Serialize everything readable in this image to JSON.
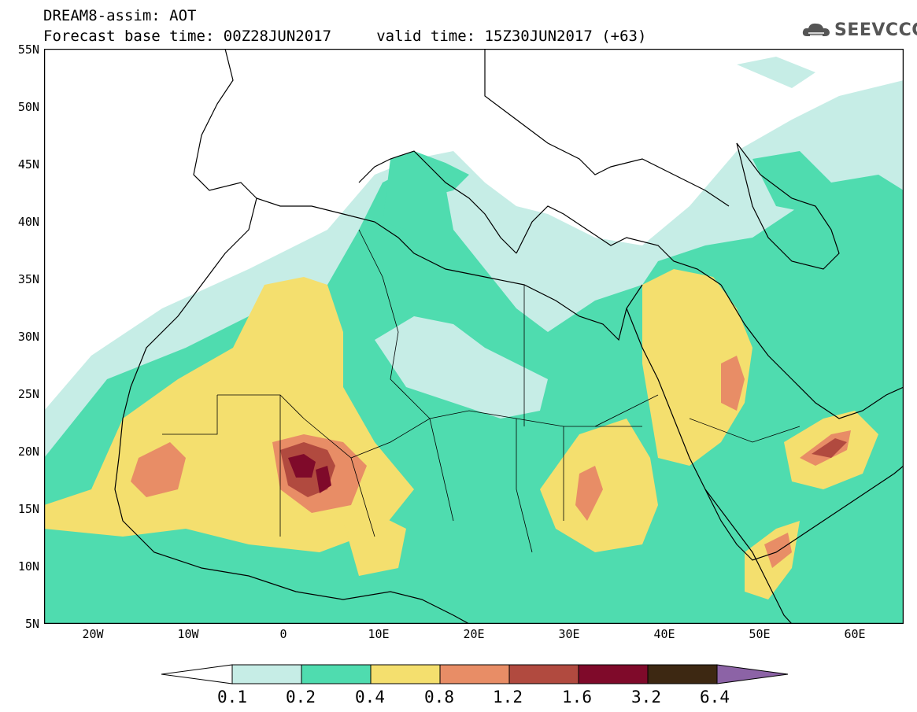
{
  "header": {
    "line1": "DREAM8-assim: AOT",
    "line2": "Forecast base time: 00Z28JUN2017     valid time: 15Z30JUN2017 (+63)"
  },
  "logo": {
    "text": "SEEVCCC",
    "icon": "cloud-logo-icon"
  },
  "map": {
    "projection": "lat-lon",
    "lon_range": [
      -25,
      65
    ],
    "lat_range": [
      5,
      55
    ],
    "y_ticks": [
      "55N",
      "50N",
      "45N",
      "40N",
      "35N",
      "30N",
      "25N",
      "20N",
      "15N",
      "10N",
      "5N"
    ],
    "x_ticks": [
      "20W",
      "10W",
      "0",
      "10E",
      "20E",
      "30E",
      "40E",
      "50E",
      "60E"
    ]
  },
  "legend": {
    "colors": [
      "#ffffff",
      "#c6ede6",
      "#4fdcaf",
      "#f4df6e",
      "#e88d66",
      "#b14a3f",
      "#7f0a2a",
      "#3d2812",
      "#8c63a6"
    ],
    "levels": [
      "0.1",
      "0.2",
      "0.4",
      "0.8",
      "1.2",
      "1.6",
      "3.2",
      "6.4"
    ]
  }
}
